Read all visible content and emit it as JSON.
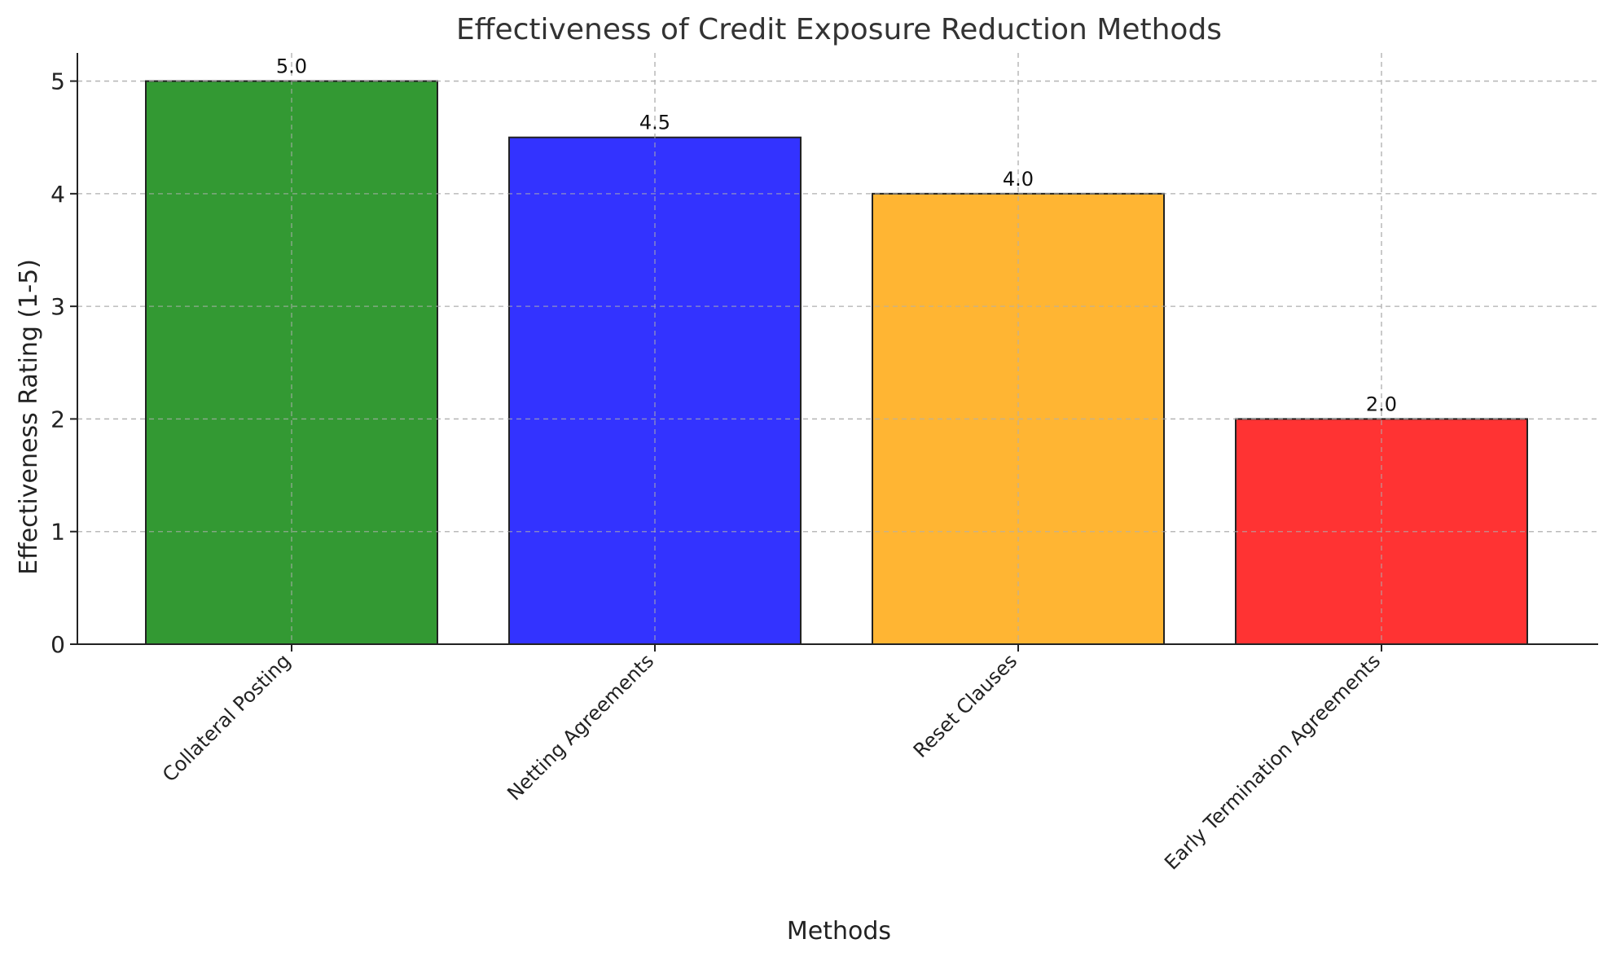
{
  "chart_data": {
    "type": "bar",
    "title": "Effectiveness of Credit Exposure Reduction Methods",
    "xlabel": "Methods",
    "ylabel": "Effectiveness Rating (1-5)",
    "categories": [
      "Collateral Posting",
      "Netting Agreements",
      "Reset Clauses",
      "Early Termination Agreements"
    ],
    "values": [
      5.0,
      4.5,
      4.0,
      2.0
    ],
    "value_labels": [
      "5.0",
      "4.5",
      "4.0",
      "2.0"
    ],
    "colors": [
      "#339933",
      "#3333ff",
      "#ffb533",
      "#ff3333"
    ],
    "ylim": [
      0,
      5.25
    ],
    "yticks": [
      0,
      1,
      2,
      3,
      4,
      5
    ],
    "grid": true,
    "legend": "none"
  }
}
